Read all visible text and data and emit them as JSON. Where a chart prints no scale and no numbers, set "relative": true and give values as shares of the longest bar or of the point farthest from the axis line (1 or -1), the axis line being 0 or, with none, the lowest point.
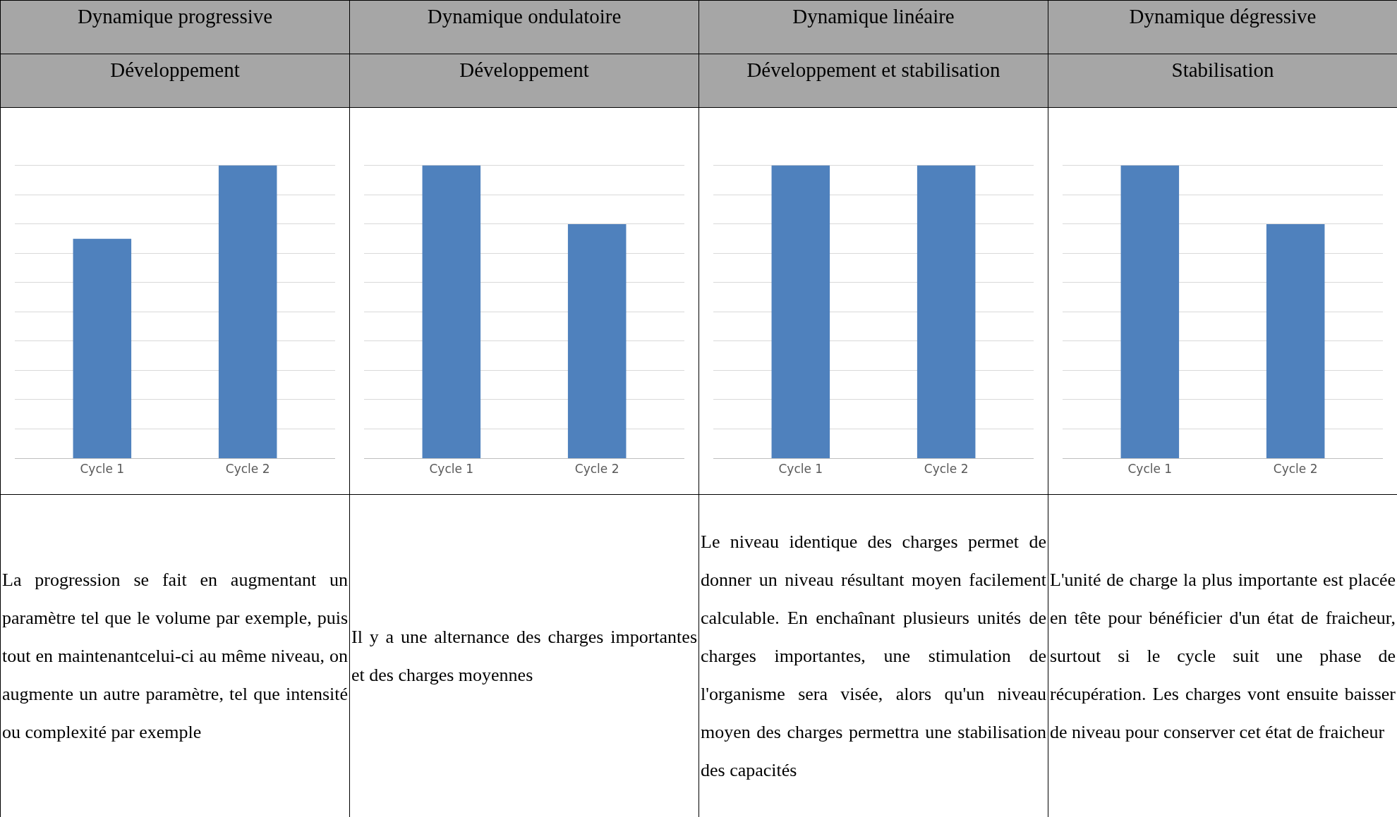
{
  "chart_data": [
    {
      "type": "bar",
      "title": "Dynamique progressive",
      "subtitle": "Développement",
      "categories": [
        "Cycle 1",
        "Cycle 2"
      ],
      "values": [
        0.75,
        1
      ],
      "color": "#4f81bd",
      "relative": true,
      "grid": true,
      "annotations": [
        "La progression se fait en augmentant un paramètre tel que le volume par exemple, puis tout en maintenantcelui-ci au même niveau,  on augmente un autre paramètre, tel que intensité ou complexité par exemple"
      ]
    },
    {
      "type": "bar",
      "title": "Dynamique ondulatoire",
      "subtitle": "Développement",
      "categories": [
        "Cycle 1",
        "Cycle 2"
      ],
      "values": [
        1,
        0.8
      ],
      "color": "#4f81bd",
      "relative": true,
      "grid": true,
      "annotations": [
        "Il y a une alternance des charges importantes et des charges moyennes"
      ]
    },
    {
      "type": "bar",
      "title": "Dynamique linéaire",
      "subtitle": "Développement et stabilisation",
      "categories": [
        "Cycle 1",
        "Cycle 2"
      ],
      "values": [
        1,
        1
      ],
      "color": "#4f81bd",
      "relative": true,
      "grid": true,
      "annotations": [
        "Le niveau identique des charges permet de donner un niveau résultant moyen facilement calculable. En enchaînant plusieurs unités de charges importantes, une stimulation de l'organisme sera visée, alors qu'un niveau moyen des charges permettra une stabilisation des capacités"
      ]
    },
    {
      "type": "bar",
      "title": "Dynamique dégressive",
      "subtitle": "Stabilisation",
      "categories": [
        "Cycle 1",
        "Cycle 2"
      ],
      "values": [
        1,
        0.8
      ],
      "color": "#4f81bd",
      "relative": true,
      "grid": true,
      "annotations": [
        "L'unité de charge la plus importante est placée en tête pour bénéficier d'un état de fraicheur, surtout si le cycle suit une phase de récupération. Les charges vont ensuite  baisser  de niveau pour conserver cet état de fraicheur"
      ]
    }
  ]
}
